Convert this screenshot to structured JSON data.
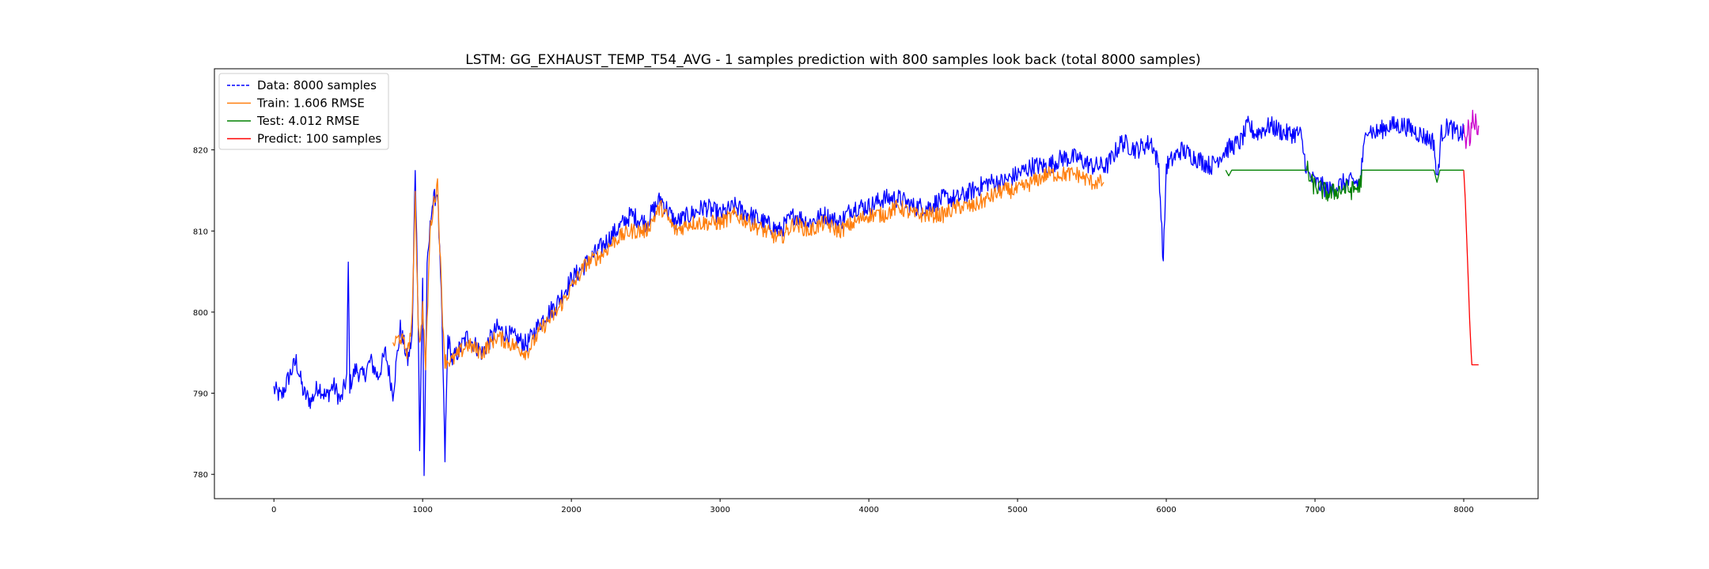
{
  "chart_data": {
    "type": "line",
    "title": "LSTM: GG_EXHAUST_TEMP_T54_AVG - 1 samples prediction with 800 samples look back (total 8000 samples)",
    "xlabel": "",
    "ylabel": "",
    "xlim": [
      -400,
      8500
    ],
    "ylim": [
      777,
      830
    ],
    "x_ticks": [
      0,
      1000,
      2000,
      3000,
      4000,
      5000,
      6000,
      7000,
      8000
    ],
    "y_ticks": [
      780,
      790,
      800,
      810,
      820
    ],
    "grid": false,
    "legend_position": "top-left",
    "series": [
      {
        "name": "Data: 8000 samples",
        "color": "#0000ff",
        "style": "dashed",
        "points": [
          [
            0,
            790.5
          ],
          [
            50,
            789.5
          ],
          [
            100,
            792
          ],
          [
            150,
            794
          ],
          [
            200,
            790
          ],
          [
            250,
            789
          ],
          [
            300,
            791
          ],
          [
            350,
            789.5
          ],
          [
            400,
            791
          ],
          [
            450,
            789
          ],
          [
            490,
            792
          ],
          [
            500,
            806
          ],
          [
            510,
            791
          ],
          [
            550,
            793
          ],
          [
            600,
            792
          ],
          [
            650,
            794
          ],
          [
            700,
            792
          ],
          [
            750,
            795
          ],
          [
            800,
            790
          ],
          [
            850,
            798
          ],
          [
            900,
            794
          ],
          [
            930,
            797
          ],
          [
            950,
            818
          ],
          [
            970,
            800
          ],
          [
            980,
            783
          ],
          [
            1000,
            804
          ],
          [
            1010,
            780
          ],
          [
            1030,
            805
          ],
          [
            1060,
            813
          ],
          [
            1100,
            815
          ],
          [
            1130,
            799
          ],
          [
            1150,
            782
          ],
          [
            1170,
            797
          ],
          [
            1200,
            794
          ],
          [
            1300,
            797
          ],
          [
            1400,
            795
          ],
          [
            1500,
            798
          ],
          [
            1600,
            797
          ],
          [
            1700,
            796
          ],
          [
            1800,
            799
          ],
          [
            1900,
            801
          ],
          [
            2000,
            804
          ],
          [
            2100,
            806
          ],
          [
            2200,
            808
          ],
          [
            2300,
            810
          ],
          [
            2400,
            812
          ],
          [
            2500,
            811
          ],
          [
            2600,
            814
          ],
          [
            2700,
            811
          ],
          [
            2800,
            812
          ],
          [
            2900,
            813
          ],
          [
            3000,
            812
          ],
          [
            3100,
            813
          ],
          [
            3200,
            812
          ],
          [
            3300,
            811
          ],
          [
            3400,
            810
          ],
          [
            3500,
            812
          ],
          [
            3600,
            811
          ],
          [
            3700,
            812
          ],
          [
            3800,
            811
          ],
          [
            3900,
            813
          ],
          [
            4000,
            813
          ],
          [
            4100,
            814
          ],
          [
            4200,
            814
          ],
          [
            4300,
            813
          ],
          [
            4400,
            813
          ],
          [
            4500,
            814
          ],
          [
            4600,
            814
          ],
          [
            4700,
            815
          ],
          [
            4800,
            816
          ],
          [
            4900,
            816
          ],
          [
            5000,
            817
          ],
          [
            5100,
            818
          ],
          [
            5200,
            818
          ],
          [
            5300,
            819
          ],
          [
            5400,
            819
          ],
          [
            5500,
            818
          ],
          [
            5600,
            818
          ],
          [
            5700,
            821
          ],
          [
            5800,
            820
          ],
          [
            5900,
            821
          ],
          [
            5950,
            818
          ],
          [
            5980,
            806
          ],
          [
            6000,
            818
          ],
          [
            6100,
            820
          ],
          [
            6200,
            819
          ],
          [
            6300,
            818
          ],
          [
            6400,
            820
          ],
          [
            6500,
            821
          ],
          [
            6550,
            823
          ],
          [
            6600,
            822
          ],
          [
            6700,
            823
          ],
          [
            6800,
            822
          ],
          [
            6900,
            822
          ],
          [
            6950,
            817
          ],
          [
            7000,
            816
          ],
          [
            7100,
            815
          ],
          [
            7200,
            816
          ],
          [
            7300,
            816
          ],
          [
            7350,
            823
          ],
          [
            7400,
            822
          ],
          [
            7500,
            823
          ],
          [
            7600,
            823
          ],
          [
            7700,
            822
          ],
          [
            7800,
            821
          ],
          [
            7820,
            816
          ],
          [
            7850,
            822
          ],
          [
            7900,
            823
          ],
          [
            7950,
            822
          ],
          [
            8000,
            822
          ]
        ]
      },
      {
        "name": "Train: 1.606 RMSE",
        "color": "#ff7f0e",
        "style": "solid",
        "points": [
          [
            800,
            796
          ],
          [
            850,
            797
          ],
          [
            900,
            795
          ],
          [
            930,
            799
          ],
          [
            950,
            815
          ],
          [
            970,
            799
          ],
          [
            985,
            796
          ],
          [
            1000,
            801
          ],
          [
            1020,
            793
          ],
          [
            1050,
            810
          ],
          [
            1080,
            814
          ],
          [
            1100,
            816
          ],
          [
            1130,
            801
          ],
          [
            1150,
            794
          ],
          [
            1200,
            794
          ],
          [
            1300,
            796
          ],
          [
            1400,
            795
          ],
          [
            1500,
            797
          ],
          [
            1600,
            796
          ],
          [
            1700,
            795
          ],
          [
            1800,
            798
          ],
          [
            1900,
            800
          ],
          [
            2000,
            803
          ],
          [
            2100,
            806
          ],
          [
            2200,
            807
          ],
          [
            2300,
            809
          ],
          [
            2400,
            810
          ],
          [
            2500,
            810
          ],
          [
            2600,
            813
          ],
          [
            2700,
            810
          ],
          [
            2800,
            811
          ],
          [
            2900,
            811
          ],
          [
            3000,
            811
          ],
          [
            3100,
            812
          ],
          [
            3200,
            811
          ],
          [
            3300,
            810
          ],
          [
            3400,
            809
          ],
          [
            3500,
            811
          ],
          [
            3600,
            810
          ],
          [
            3700,
            811
          ],
          [
            3800,
            810
          ],
          [
            3900,
            811
          ],
          [
            4000,
            812
          ],
          [
            4100,
            812
          ],
          [
            4200,
            813
          ],
          [
            4300,
            812
          ],
          [
            4400,
            812
          ],
          [
            4500,
            812
          ],
          [
            4600,
            813
          ],
          [
            4700,
            813
          ],
          [
            4800,
            814
          ],
          [
            4900,
            815
          ],
          [
            5000,
            815
          ],
          [
            5100,
            816
          ],
          [
            5200,
            817
          ],
          [
            5300,
            817
          ],
          [
            5400,
            817
          ],
          [
            5500,
            816
          ],
          [
            5580,
            816
          ]
        ]
      },
      {
        "name": "Test: 4.012 RMSE",
        "color": "#008000",
        "style": "solid",
        "points": [
          [
            6400,
            817.5
          ],
          [
            6420,
            816.8
          ],
          [
            6440,
            817.5
          ],
          [
            6950,
            817.5
          ],
          [
            6970,
            816
          ],
          [
            7000,
            815.5
          ],
          [
            7050,
            815
          ],
          [
            7100,
            814.5
          ],
          [
            7150,
            815
          ],
          [
            7200,
            815.2
          ],
          [
            7250,
            815
          ],
          [
            7300,
            815.5
          ],
          [
            7320,
            817.5
          ],
          [
            7800,
            817.5
          ],
          [
            7820,
            816
          ],
          [
            7840,
            817.5
          ],
          [
            8000,
            817.5
          ]
        ]
      },
      {
        "name": "Predict: 100 samples",
        "color": "#ff0000",
        "style": "solid",
        "points": [
          [
            8000,
            817.5
          ],
          [
            8010,
            814
          ],
          [
            8020,
            809
          ],
          [
            8030,
            804
          ],
          [
            8040,
            799
          ],
          [
            8050,
            795
          ],
          [
            8055,
            793.5
          ],
          [
            8100,
            793.5
          ]
        ]
      },
      {
        "name": "",
        "color": "#cc00cc",
        "style": "dashed",
        "points": [
          [
            8000,
            822
          ],
          [
            8015,
            820
          ],
          [
            8030,
            823
          ],
          [
            8045,
            821
          ],
          [
            8060,
            825
          ],
          [
            8070,
            822
          ],
          [
            8080,
            824
          ],
          [
            8090,
            821.5
          ],
          [
            8100,
            823
          ]
        ]
      }
    ]
  }
}
